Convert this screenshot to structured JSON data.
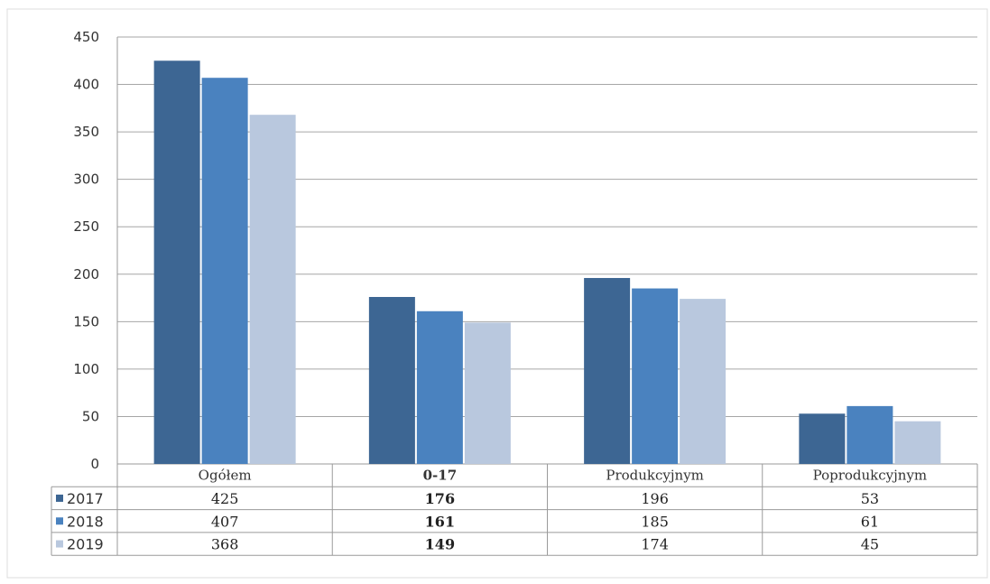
{
  "chart_data": {
    "type": "bar",
    "categories": [
      "Ogółem",
      "0-17",
      "Produkcyjnym",
      "Poprodukcyjnym"
    ],
    "bold_categories": [
      "0-17"
    ],
    "series": [
      {
        "name": "2017",
        "color": "#3d6693",
        "values": [
          425,
          176,
          196,
          53
        ]
      },
      {
        "name": "2018",
        "color": "#4a82bf",
        "values": [
          407,
          161,
          185,
          61
        ]
      },
      {
        "name": "2019",
        "color": "#b9c8de",
        "values": [
          368,
          149,
          174,
          45
        ]
      }
    ],
    "ylim": [
      0,
      450
    ],
    "yticks": [
      "0",
      "50",
      "100",
      "150",
      "200",
      "250",
      "300",
      "350",
      "400",
      "450"
    ],
    "grid": true,
    "data_table": true,
    "legend": "in data table"
  }
}
